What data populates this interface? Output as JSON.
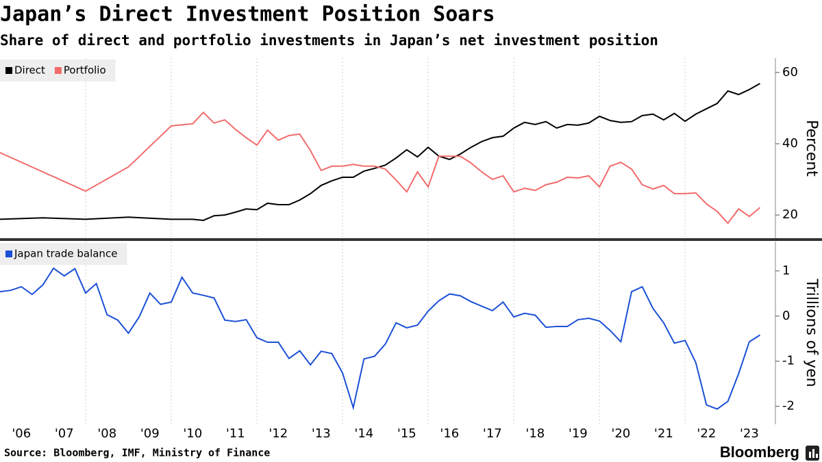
{
  "header": {
    "title": "Japan’s Direct Investment Position Soars",
    "subtitle": "Share of direct and portfolio investments in Japan’s net investment position"
  },
  "footer": {
    "source": "Source: Bloomberg, IMF, Ministry of Finance",
    "logo": "Bloomberg"
  },
  "chart_data": [
    {
      "type": "line",
      "ylabel": "Percent",
      "legend": "upper left",
      "xlim": [
        2006,
        2024.11
      ],
      "xgrid": [
        2008,
        2010,
        2012,
        2014,
        2016,
        2018,
        2020,
        2022
      ],
      "ylim": [
        13.5,
        64
      ],
      "yticks": [
        20,
        40,
        60
      ],
      "x": [
        2006,
        2007,
        2008,
        2009,
        2010,
        2010.25,
        2010.5,
        2010.75,
        2011,
        2011.25,
        2011.5,
        2011.75,
        2012,
        2012.25,
        2012.5,
        2012.75,
        2013,
        2013.25,
        2013.5,
        2013.75,
        2014,
        2014.25,
        2014.5,
        2014.75,
        2015,
        2015.25,
        2015.5,
        2015.75,
        2016,
        2016.25,
        2016.5,
        2016.75,
        2017,
        2017.25,
        2017.5,
        2017.75,
        2018,
        2018.25,
        2018.5,
        2018.75,
        2019,
        2019.25,
        2019.5,
        2019.75,
        2020,
        2020.25,
        2020.5,
        2020.75,
        2021,
        2021.25,
        2021.5,
        2021.75,
        2022,
        2022.25,
        2022.5,
        2022.75,
        2023,
        2023.25,
        2023.5,
        2023.75
      ],
      "series": [
        {
          "name": "Direct",
          "color": "#000000",
          "values": [
            18.8,
            19.2,
            18.8,
            19.4,
            18.8,
            18.8,
            18.8,
            18.5,
            19.8,
            20,
            20.8,
            21.7,
            21.5,
            23.3,
            22.9,
            22.9,
            24.2,
            26,
            28.3,
            29.6,
            30.6,
            30.6,
            32.3,
            33.1,
            34,
            36,
            38.3,
            36.3,
            39,
            36.5,
            35.6,
            37.1,
            39,
            40.6,
            41.7,
            42.1,
            44.4,
            46,
            45.4,
            46.2,
            44.4,
            45.4,
            45.2,
            45.8,
            47.7,
            46.5,
            46,
            46.2,
            47.9,
            48.3,
            46.7,
            48.5,
            46.3,
            48.3,
            49.8,
            51.3,
            54.8,
            53.8,
            55.2,
            56.9
          ]
        },
        {
          "name": "Portfolio",
          "color": "#f26b6b",
          "values": [
            37.5,
            32.1,
            26.7,
            33.5,
            45,
            45.3,
            45.6,
            48.8,
            45.8,
            46.7,
            44,
            41.7,
            39.6,
            43.8,
            41,
            42.3,
            42.7,
            38.1,
            32.5,
            33.7,
            33.7,
            34.2,
            33.7,
            33.7,
            32.9,
            29.8,
            26.5,
            32.1,
            27.9,
            36.5,
            36.5,
            36.5,
            34.6,
            32.1,
            30,
            31,
            26.5,
            27.5,
            26.9,
            28.5,
            29.2,
            30.6,
            30.4,
            31,
            27.9,
            33.7,
            34.8,
            32.9,
            28.5,
            27.3,
            28.3,
            26,
            26,
            26.2,
            23.1,
            21,
            17.7,
            21.7,
            19.6,
            22.1
          ]
        }
      ]
    },
    {
      "type": "line",
      "ylabel": "Trillions of yen",
      "legend": "upper left",
      "xlim": [
        2006,
        2024.11
      ],
      "xgrid": [
        2008,
        2010,
        2012,
        2014,
        2016,
        2018,
        2020,
        2022
      ],
      "xticks": [
        {
          "value": 2006.5,
          "label": "'06"
        },
        {
          "value": 2007.5,
          "label": "'07"
        },
        {
          "value": 2008.5,
          "label": "'08"
        },
        {
          "value": 2009.5,
          "label": "'09"
        },
        {
          "value": 2010.5,
          "label": "'10"
        },
        {
          "value": 2011.5,
          "label": "'11"
        },
        {
          "value": 2012.5,
          "label": "'12"
        },
        {
          "value": 2013.5,
          "label": "'13"
        },
        {
          "value": 2014.5,
          "label": "'14"
        },
        {
          "value": 2015.5,
          "label": "'15"
        },
        {
          "value": 2016.5,
          "label": "'16"
        },
        {
          "value": 2017.5,
          "label": "'17"
        },
        {
          "value": 2018.5,
          "label": "'18"
        },
        {
          "value": 2019.5,
          "label": "'19"
        },
        {
          "value": 2020.5,
          "label": "'20"
        },
        {
          "value": 2021.5,
          "label": "'21"
        },
        {
          "value": 2022.5,
          "label": "'22"
        },
        {
          "value": 2023.5,
          "label": "'23"
        }
      ],
      "ylim": [
        -2.4,
        1.65
      ],
      "yticks": [
        -2,
        -1,
        0,
        1
      ],
      "x": [
        2006,
        2006.25,
        2006.5,
        2006.75,
        2007,
        2007.25,
        2007.5,
        2007.75,
        2008,
        2008.25,
        2008.5,
        2008.75,
        2009,
        2009.25,
        2009.5,
        2009.75,
        2010,
        2010.25,
        2010.5,
        2010.75,
        2011,
        2011.25,
        2011.5,
        2011.75,
        2012,
        2012.25,
        2012.5,
        2012.75,
        2013,
        2013.25,
        2013.5,
        2013.75,
        2014,
        2014.25,
        2014.5,
        2014.75,
        2015,
        2015.25,
        2015.5,
        2015.75,
        2016,
        2016.25,
        2016.5,
        2016.75,
        2017,
        2017.25,
        2017.5,
        2017.75,
        2018,
        2018.25,
        2018.5,
        2018.75,
        2019,
        2019.25,
        2019.5,
        2019.75,
        2020,
        2020.25,
        2020.5,
        2020.75,
        2021,
        2021.25,
        2021.5,
        2021.75,
        2022,
        2022.25,
        2022.5,
        2022.75,
        2023,
        2023.25,
        2023.5,
        2023.75
      ],
      "series": [
        {
          "name": "Japan trade balance",
          "color": "#1a4fd6",
          "values": [
            0.54,
            0.57,
            0.65,
            0.48,
            0.69,
            1.06,
            0.89,
            1.05,
            0.51,
            0.72,
            0.03,
            -0.09,
            -0.38,
            -0.02,
            0.51,
            0.26,
            0.31,
            0.86,
            0.51,
            0.46,
            0.4,
            -0.09,
            -0.12,
            -0.08,
            -0.48,
            -0.58,
            -0.58,
            -0.94,
            -0.77,
            -1.08,
            -0.78,
            -0.83,
            -1.26,
            -2.03,
            -0.95,
            -0.89,
            -0.62,
            -0.15,
            -0.26,
            -0.2,
            0.11,
            0.34,
            0.49,
            0.45,
            0.32,
            0.22,
            0.12,
            0.31,
            -0.02,
            0.06,
            0.02,
            -0.25,
            -0.23,
            -0.23,
            -0.08,
            -0.05,
            -0.11,
            -0.32,
            -0.57,
            0.54,
            0.65,
            0.17,
            -0.15,
            -0.6,
            -0.54,
            -1.03,
            -1.97,
            -2.06,
            -1.89,
            -1.28,
            -0.57,
            -0.42
          ]
        }
      ]
    }
  ]
}
